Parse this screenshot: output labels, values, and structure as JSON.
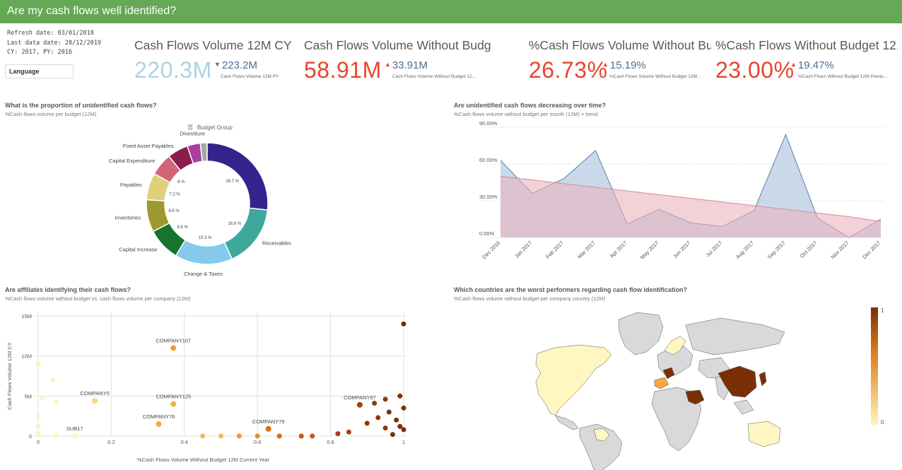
{
  "header": {
    "title": "Are my cash flows well identified?"
  },
  "meta": {
    "refresh": "Refresh date: 03/01/2018",
    "last_data": "Last data date: 28/12/2019",
    "period": "CY: 2017, PY: 2016"
  },
  "filters": {
    "language_label": "Language"
  },
  "kpis": [
    {
      "title": "Cash Flows Volume 12M CY",
      "value": "220.3M",
      "compare": "223.2M",
      "compare_label": "Cash Flows Volume 12M PY",
      "trend": "down",
      "value_color": "#a9d3e4"
    },
    {
      "title": "Cash Flows Volume Without Budge...",
      "value": "58.91M",
      "compare": "33.91M",
      "compare_label": "Cash Flows Volume Without Budget 12...",
      "trend": "up",
      "value_color": "#e8452c"
    },
    {
      "title": "%Cash Flows Volume Without Bu...",
      "value": "26.73%",
      "compare": "15.19%",
      "compare_label": "%Cash Flows Volume Without Budget 12M...",
      "trend": "up",
      "value_color": "#e8452c"
    },
    {
      "title": "%Cash Flows Without Budget 12...",
      "value": "23.00%",
      "compare": "19.47%",
      "compare_label": "%Cash Flows Without Budget 12M Previo...",
      "trend": "up",
      "value_color": "#e8452c"
    }
  ],
  "sections": {
    "donut": {
      "title": "What is the proportion of unidentified cash flows?",
      "subtitle": "%Cash flows volume per budget (12M)"
    },
    "area": {
      "title": "Are unidentified cash flows decreasing over time?",
      "subtitle": "%Cash flows volume without budget per month (12M) + trend"
    },
    "scatter": {
      "title": "Are affiliates identifying their cash flows?",
      "subtitle": "%Cash flows volume without budget vs. cash flows volume per company (12M)"
    },
    "map": {
      "title": "Which countries are the worst performers regarding cash flow identification?",
      "subtitle": "%Cash flows volume without budget per company country (12M)"
    }
  },
  "chart_data": [
    {
      "type": "pie",
      "legend_title": "Budget Group",
      "slices": [
        {
          "label": "",
          "value": 26.7,
          "pct_label": "26.7 %",
          "color": "#33258b"
        },
        {
          "label": "Receivables",
          "value": 16.6,
          "pct_label": "16.6 %",
          "color": "#3ea99b"
        },
        {
          "label": "Change & Taxes",
          "value": 15.3,
          "pct_label": "15.3 %",
          "color": "#85c9ec"
        },
        {
          "label": "Capital Increase",
          "value": 8.8,
          "pct_label": "8.8 %",
          "color": "#17732e"
        },
        {
          "label": "Inventories",
          "value": 8.6,
          "pct_label": "8.6 %",
          "color": "#9c9a2f"
        },
        {
          "label": "Payables",
          "value": 7.2,
          "pct_label": "7.2 %",
          "color": "#e0cf7a"
        },
        {
          "label": "Capital Expenditure",
          "value": 6,
          "pct_label": "6 %",
          "color": "#d16577"
        },
        {
          "label": "Fixed Asset Payables",
          "value": 5.5,
          "pct_label": "",
          "color": "#8a1d4d"
        },
        {
          "label": "Divestiture",
          "value": 3.5,
          "pct_label": "",
          "color": "#aa3da0"
        },
        {
          "label": "",
          "value": 1.8,
          "pct_label": "",
          "color": "#a8a8a8"
        }
      ]
    },
    {
      "type": "area",
      "categories": [
        "Dec 2016",
        "Jan 2017",
        "Feb 2017",
        "Mar 2017",
        "Apr 2017",
        "May 2017",
        "Jun 2017",
        "Jul 2017",
        "Aug 2017",
        "Sep 2017",
        "Oct 2017",
        "Nov 2017",
        "Dec 2017"
      ],
      "series": [
        {
          "values": [
            63,
            36,
            48,
            71,
            11,
            23,
            12,
            9,
            22,
            84,
            16,
            0,
            15
          ],
          "color": "#a7bfdc"
        },
        {
          "values": [
            50,
            47,
            44,
            41,
            38,
            35,
            32,
            29,
            26,
            23,
            20,
            17,
            13
          ],
          "color": "#e9b2bd"
        }
      ],
      "ylim": [
        0,
        90
      ],
      "yticks": [
        "0.00%",
        "30.00%",
        "60.00%",
        "90.00%"
      ]
    },
    {
      "type": "scatter",
      "xlabel": "%Cash Flows Volume Without Budget 12M Current Year",
      "ylabel": "Cash Flows Volume 12M CY",
      "xlim": [
        0,
        1
      ],
      "ylim": [
        0,
        15
      ],
      "xticks": [
        "0",
        "0.2",
        "0.4",
        "0.6",
        "0.8",
        "1"
      ],
      "yticks": [
        "0",
        "5M",
        "10M",
        "15M"
      ],
      "labeled_points": [
        {
          "label": "COMPANY107",
          "x": 0.37,
          "y": 11,
          "color": "#f39b2b"
        },
        {
          "label": "COMPANY5",
          "x": 0.155,
          "y": 4.4,
          "color": "#fbd67a"
        },
        {
          "label": "COMPANY125",
          "x": 0.37,
          "y": 4,
          "color": "#f5b041"
        },
        {
          "label": "COMPANY76",
          "x": 0.33,
          "y": 1.5,
          "color": "#f5a93e"
        },
        {
          "label": "COMPANY79",
          "x": 0.63,
          "y": 0.9,
          "color": "#da6f15"
        },
        {
          "label": "COMPANY97",
          "x": 0.88,
          "y": 3.9,
          "color": "#a4410a"
        },
        {
          "label": "SUB17",
          "x": 0.1,
          "y": 0,
          "color": "#fff2c4"
        }
      ]
    },
    {
      "type": "map",
      "legend_max": "1",
      "legend_min": "0",
      "colors": {
        "high": "#7a2f06",
        "low": "#fff6c2",
        "none": "#d9d9d9"
      }
    }
  ]
}
